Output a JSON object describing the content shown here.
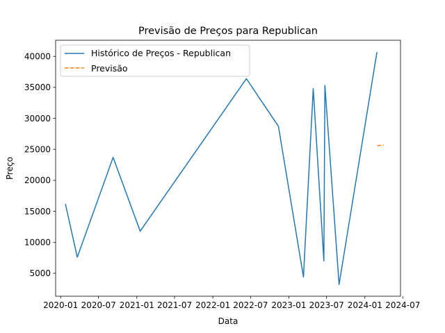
{
  "chart_data": {
    "type": "line",
    "title": "Previsão de Preços para Republican",
    "xlabel": "Data",
    "ylabel": "Preço",
    "x_type": "date",
    "xlim": [
      "2019-12-08",
      "2024-06-20"
    ],
    "ylim": [
      1300,
      42600
    ],
    "x_ticks": [
      "2020-01-01",
      "2020-07-01",
      "2021-01-01",
      "2021-07-01",
      "2022-01-01",
      "2022-07-01",
      "2023-01-01",
      "2023-07-01",
      "2024-01-01",
      "2024-07-01"
    ],
    "x_tick_labels": [
      "2020-01",
      "2020-07",
      "2021-01",
      "2021-07",
      "2022-01",
      "2022-07",
      "2023-01",
      "2023-07",
      "2024-01",
      "2024-07"
    ],
    "y_ticks": [
      5000,
      10000,
      15000,
      20000,
      25000,
      30000,
      35000,
      40000
    ],
    "y_tick_labels": [
      "5000",
      "10000",
      "15000",
      "20000",
      "25000",
      "30000",
      "35000",
      "40000"
    ],
    "grid": false,
    "legend_position": "upper-left",
    "series": [
      {
        "name": "Histórico de Preços - Republican",
        "color": "#1f77b4",
        "style": "solid",
        "points": [
          {
            "x": "2020-01-24",
            "y": 16200
          },
          {
            "x": "2020-03-21",
            "y": 7600
          },
          {
            "x": "2020-09-09",
            "y": 23700
          },
          {
            "x": "2021-01-17",
            "y": 11800
          },
          {
            "x": "2022-06-11",
            "y": 36400
          },
          {
            "x": "2022-11-12",
            "y": 28700
          },
          {
            "x": "2023-03-12",
            "y": 4400
          },
          {
            "x": "2023-04-28",
            "y": 34800
          },
          {
            "x": "2023-06-18",
            "y": 7000
          },
          {
            "x": "2023-06-23",
            "y": 35300
          },
          {
            "x": "2023-08-30",
            "y": 3200
          },
          {
            "x": "2024-02-28",
            "y": 40700
          }
        ]
      },
      {
        "name": "Previsão",
        "color": "#ff7f0e",
        "style": "dashed",
        "points": [
          {
            "x": "2024-03-01",
            "y": 25600
          },
          {
            "x": "2024-03-31",
            "y": 25700
          }
        ]
      }
    ]
  }
}
